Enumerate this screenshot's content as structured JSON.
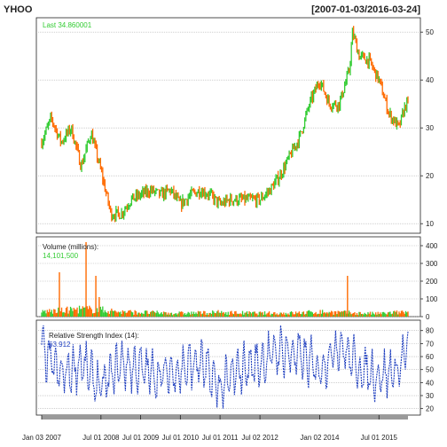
{
  "header": {
    "symbol": "YHOO",
    "date_range": "[2007-01-03/2016-03-24]"
  },
  "colors": {
    "up": "#33cc33",
    "down": "#ff6a00",
    "rsi": "#1f3fbf",
    "last_text": "#33cc33",
    "grid": "#b0b0b0"
  },
  "chart_data": [
    {
      "type": "line",
      "panel": "price",
      "title": "YHOO",
      "subtitle": "[2007-01-03/2016-03-24]",
      "annotation": "Last 34.860001",
      "last_value": 34.860001,
      "x": [
        "2007-01",
        "2007-04",
        "2007-07",
        "2007-10",
        "2008-01",
        "2008-04",
        "2008-07",
        "2008-10",
        "2009-01",
        "2009-04",
        "2009-07",
        "2009-10",
        "2010-01",
        "2010-04",
        "2010-07",
        "2010-10",
        "2011-01",
        "2011-04",
        "2011-07",
        "2011-10",
        "2012-01",
        "2012-04",
        "2012-07",
        "2012-10",
        "2013-01",
        "2013-04",
        "2013-07",
        "2013-10",
        "2014-01",
        "2014-04",
        "2014-07",
        "2014-10",
        "2014-11",
        "2015-01",
        "2015-04",
        "2015-07",
        "2015-10",
        "2016-01",
        "2016-03"
      ],
      "y": [
        27,
        32,
        27,
        30,
        22,
        29,
        21,
        12,
        12,
        15,
        16,
        17,
        16,
        17,
        14,
        16,
        17,
        16,
        14,
        15,
        15,
        15,
        15,
        17,
        20,
        24,
        28,
        35,
        40,
        35,
        35,
        42,
        50,
        45,
        44,
        40,
        33,
        30,
        34.86
      ],
      "ylim": [
        8,
        53
      ],
      "yticks": [
        10,
        20,
        30,
        40,
        50
      ],
      "grid": true
    },
    {
      "type": "bar",
      "panel": "volume",
      "label": "Volume (millions):",
      "last_value_text": "14,101,500",
      "ylim": [
        0,
        450
      ],
      "yticks": [
        0,
        100,
        200,
        300,
        400
      ],
      "x": [
        "2007-01",
        "2007-07",
        "2008-01",
        "2008-07",
        "2009-01",
        "2009-07",
        "2010-01",
        "2010-07",
        "2011-01",
        "2011-07",
        "2012-01",
        "2012-07",
        "2013-01",
        "2013-07",
        "2014-01",
        "2014-07",
        "2015-01",
        "2015-07",
        "2016-01"
      ],
      "values": [
        30,
        35,
        45,
        40,
        28,
        25,
        22,
        20,
        22,
        25,
        22,
        20,
        20,
        22,
        28,
        25,
        20,
        18,
        25
      ],
      "spikes": [
        {
          "date": "2007-06",
          "value": 250
        },
        {
          "date": "2008-02",
          "value": 420
        },
        {
          "date": "2008-05",
          "value": 230
        },
        {
          "date": "2008-06",
          "value": 110
        },
        {
          "date": "2014-09",
          "value": 230
        }
      ]
    },
    {
      "type": "line",
      "panel": "rsi",
      "label": "Relative Strength Index (14):",
      "last_value_text": "63.912",
      "last_value": 63.912,
      "ylim": [
        15,
        88
      ],
      "yticks": [
        20,
        30,
        40,
        50,
        60,
        70,
        80
      ],
      "x": [
        "2007-01",
        "2007-07",
        "2008-01",
        "2008-07",
        "2009-01",
        "2009-07",
        "2010-01",
        "2010-07",
        "2011-01",
        "2011-07",
        "2012-01",
        "2012-07",
        "2013-01",
        "2013-07",
        "2014-01",
        "2014-07",
        "2015-01",
        "2015-07",
        "2016-01",
        "2016-03"
      ],
      "y": [
        65,
        45,
        55,
        35,
        55,
        50,
        45,
        50,
        55,
        35,
        50,
        55,
        65,
        60,
        50,
        70,
        50,
        45,
        50,
        63.9
      ]
    }
  ],
  "x_axis": {
    "tick_labels": [
      "Jan 03 2007",
      "Jul 01 2008",
      "Jul 01 2009",
      "Jul 01 2010",
      "Jul 01 2011",
      "Jul 02 2012",
      "Jan 02 2014",
      "Jul 01 2015"
    ],
    "tick_dates": [
      "2007-01-03",
      "2008-07-01",
      "2009-07-01",
      "2010-07-01",
      "2011-07-01",
      "2012-07-02",
      "2014-01-02",
      "2015-07-01"
    ],
    "range": [
      "2007-01-03",
      "2016-03-24"
    ]
  }
}
